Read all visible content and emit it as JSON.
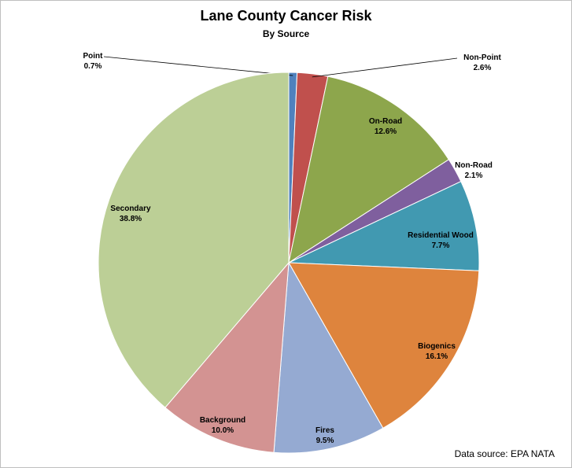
{
  "chart_data": {
    "type": "pie",
    "title": "Lane County Cancer Risk",
    "subtitle": "By Source",
    "slices": [
      {
        "name": "Point",
        "value": 0.7,
        "label": "0.7%",
        "color": "#4F81BD"
      },
      {
        "name": "Non-Point",
        "value": 2.6,
        "label": "2.6%",
        "color": "#C0504D"
      },
      {
        "name": "On-Road",
        "value": 12.6,
        "label": "12.6%",
        "color": "#8DA64C"
      },
      {
        "name": "Non-Road",
        "value": 2.1,
        "label": "2.1%",
        "color": "#7F5F9E"
      },
      {
        "name": "Residential Wood",
        "value": 7.7,
        "label": "7.7%",
        "color": "#4199B1"
      },
      {
        "name": "Biogenics",
        "value": 16.1,
        "label": "16.1%",
        "color": "#DE843D"
      },
      {
        "name": "Fires",
        "value": 9.5,
        "label": "9.5%",
        "color": "#95AAD2"
      },
      {
        "name": "Background",
        "value": 10.0,
        "label": "10.0%",
        "color": "#D39392"
      },
      {
        "name": "Secondary",
        "value": 38.8,
        "label": "38.8%",
        "color": "#BCCF96"
      }
    ],
    "source": "Data source: EPA NATA"
  }
}
